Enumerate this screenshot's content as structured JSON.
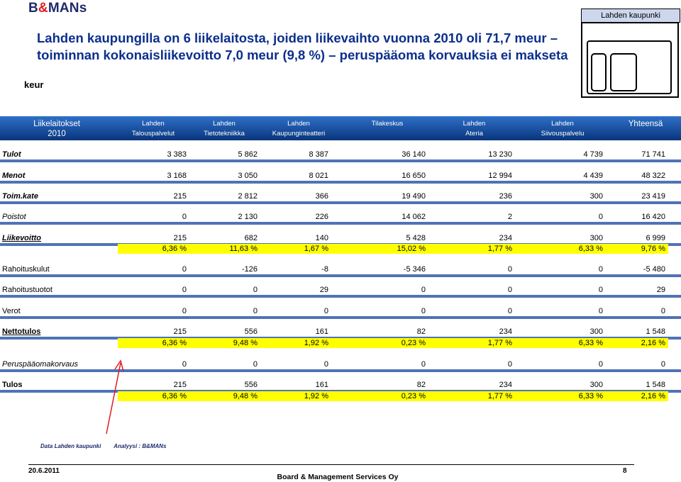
{
  "brand": {
    "prefix": "B",
    "amp": "&",
    "suffix": "MANs"
  },
  "title": {
    "line1": "Lahden kaupungilla on 6 liikelaitosta, joiden liikevaihto vuonna 2010 oli 71,7 meur –",
    "line2": "toiminnan kokonaisliikevoitto 7,0 meur (9,8 %) – peruspääoma korvauksia ei makseta"
  },
  "unit": "keur",
  "org_chart": {
    "label": "Lahden kaupunki"
  },
  "header": {
    "first": {
      "line1": "Liikelaitokset",
      "line2": "2010"
    },
    "columns": [
      {
        "line1": "Lahden",
        "line2": "Talouspalvelut"
      },
      {
        "line1": "Lahden",
        "line2": "Tietotekniikka"
      },
      {
        "line1": "Lahden",
        "line2": "Kaupunginteatteri"
      },
      {
        "line1": "Tilakeskus",
        "line2": ""
      },
      {
        "line1": "Lahden",
        "line2": "Ateria"
      },
      {
        "line1": "Lahden",
        "line2": "Siivouspalvelu"
      }
    ],
    "total": "Yhteensä"
  },
  "rows": [
    {
      "label": "Tulot",
      "values": [
        "3 383",
        "5 862",
        "8 387",
        "36 140",
        "13 230",
        "4 739",
        "71 741"
      ]
    },
    {
      "label": "Menot",
      "values": [
        "3 168",
        "3 050",
        "8 021",
        "16 650",
        "12 994",
        "4 439",
        "48 322"
      ]
    },
    {
      "label": "Toim.kate",
      "values": [
        "215",
        "2 812",
        "366",
        "19 490",
        "236",
        "300",
        "23 419"
      ]
    },
    {
      "label": "Poistot",
      "values": [
        "0",
        "2 130",
        "226",
        "14 062",
        "2",
        "0",
        "16 420"
      ]
    },
    {
      "label": "Liikevoitto",
      "values": [
        "215",
        "682",
        "140",
        "5 428",
        "234",
        "300",
        "6 999"
      ],
      "pct": [
        "6,36 %",
        "11,63 %",
        "1,67 %",
        "15,02 %",
        "1,77 %",
        "6,33 %",
        "9,76 %"
      ]
    },
    {
      "label": "Rahoituskulut",
      "values": [
        "0",
        "-126",
        "-8",
        "-5 346",
        "0",
        "0",
        "-5 480"
      ]
    },
    {
      "label": "Rahoitustuotot",
      "values": [
        "0",
        "0",
        "29",
        "0",
        "0",
        "0",
        "29"
      ]
    },
    {
      "label": "Verot",
      "values": [
        "0",
        "0",
        "0",
        "0",
        "0",
        "0",
        "0"
      ]
    },
    {
      "label": "Nettotulos",
      "values": [
        "215",
        "556",
        "161",
        "82",
        "234",
        "300",
        "1 548"
      ],
      "pct": [
        "6,36 %",
        "9,48 %",
        "1,92 %",
        "0,23 %",
        "1,77 %",
        "6,33 %",
        "2,16 %"
      ]
    },
    {
      "label": "Peruspääomakorvaus",
      "values": [
        "0",
        "0",
        "0",
        "0",
        "0",
        "0",
        "0"
      ]
    },
    {
      "label": "Tulos",
      "values": [
        "215",
        "556",
        "161",
        "82",
        "234",
        "300",
        "1 548"
      ],
      "pct": [
        "6,36 %",
        "9,48 %",
        "1,92 %",
        "0,23 %",
        "1,77 %",
        "6,33 %",
        "2,16 %"
      ]
    }
  ],
  "source_note": {
    "data": "Data Lahden kaupunki",
    "analysis": "Analyysi : B&MANs"
  },
  "footer": {
    "date": "20.6.2011",
    "company": "Board & Management Services Oy",
    "page": "8"
  },
  "colors": {
    "header_top": "#2e70c8",
    "header_bottom": "#09357c",
    "row_bar": "#4f73b6",
    "highlight": "#ffff00",
    "title": "#0b2f8c",
    "arrow": "#e31b23"
  }
}
